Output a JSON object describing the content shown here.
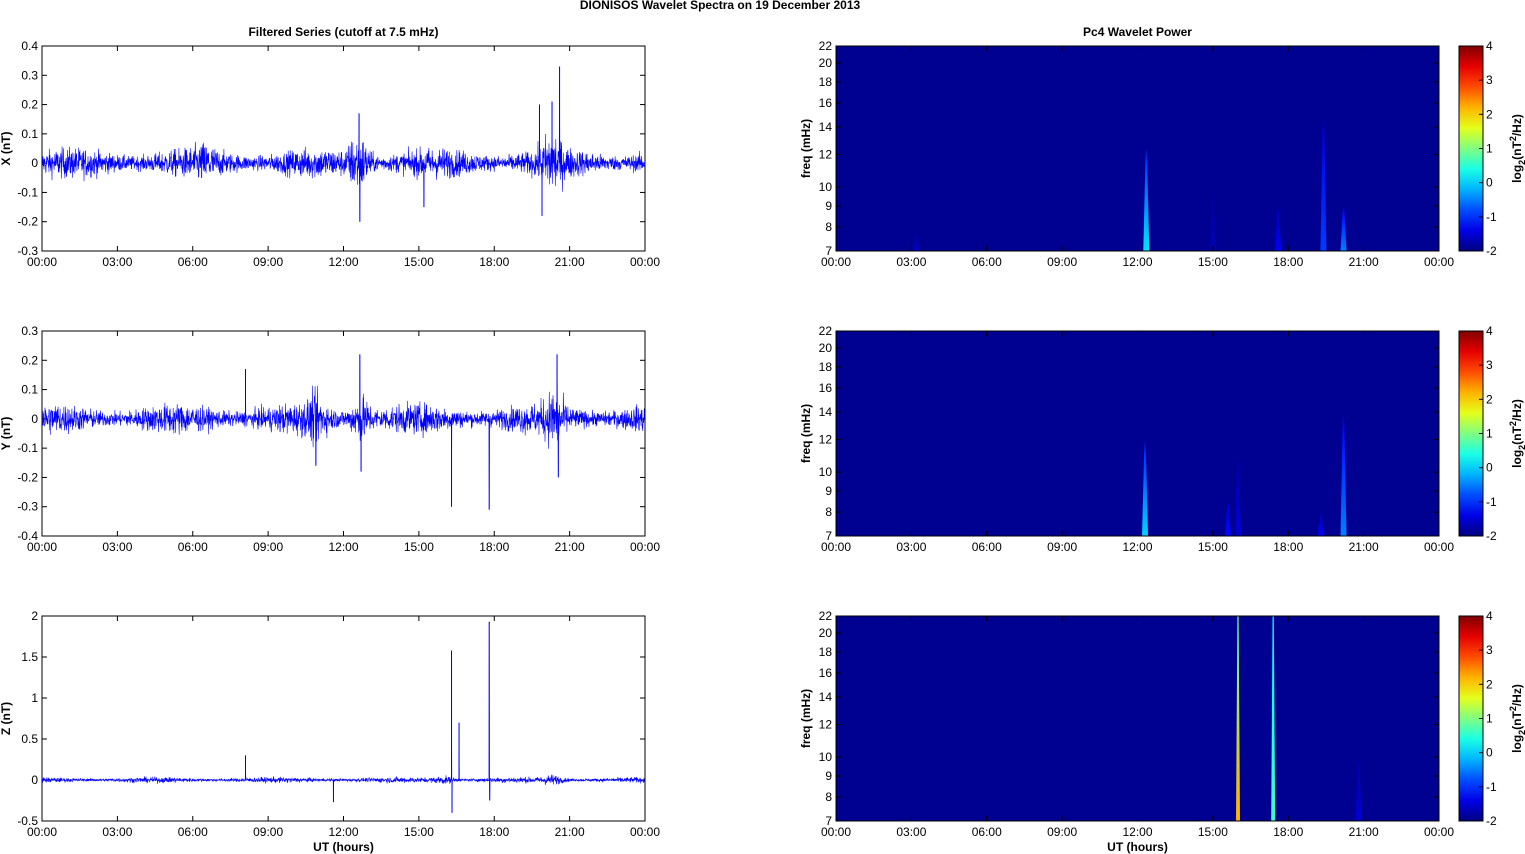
{
  "title": "DIONISOS Wavelet Spectra on 19 December  2013",
  "chart_data": [
    {
      "type": "line",
      "title": "Filtered Series (cutoff at 7.5 mHz)",
      "ylabel": "X (nT)",
      "xlabel": "",
      "xlim": [
        0,
        24
      ],
      "ylim": [
        -0.3,
        0.4
      ],
      "xticks": [
        "00:00",
        "03:00",
        "06:00",
        "09:00",
        "12:00",
        "15:00",
        "18:00",
        "21:00",
        "00:00"
      ],
      "yticks": [
        "-0.3",
        "-0.2",
        "-0.1",
        "0",
        "0.1",
        "0.2",
        "0.3",
        "0.4"
      ],
      "ytick_values": [
        -0.3,
        -0.2,
        -0.1,
        0,
        0.1,
        0.2,
        0.3,
        0.4
      ],
      "noise_amplitude": 0.045,
      "color": "#0000ff",
      "bursts": [
        {
          "t": 12.6,
          "amp": 0.07
        },
        {
          "t": 20.3,
          "amp": 0.06
        },
        {
          "t": 6.5,
          "amp": 0.02
        }
      ],
      "spikes": [
        {
          "t": 12.62,
          "v": 0.17
        },
        {
          "t": 12.65,
          "v": -0.2
        },
        {
          "t": 19.8,
          "v": 0.2
        },
        {
          "t": 19.9,
          "v": -0.18
        },
        {
          "t": 20.6,
          "v": 0.33
        },
        {
          "t": 20.3,
          "v": 0.21
        },
        {
          "t": 15.2,
          "v": -0.15
        }
      ]
    },
    {
      "type": "line",
      "title": "",
      "ylabel": "Y (nT)",
      "xlabel": "",
      "xlim": [
        0,
        24
      ],
      "ylim": [
        -0.4,
        0.3
      ],
      "xticks": [
        "00:00",
        "03:00",
        "06:00",
        "09:00",
        "12:00",
        "15:00",
        "18:00",
        "21:00",
        "00:00"
      ],
      "yticks": [
        "-0.4",
        "-0.3",
        "-0.2",
        "-0.1",
        "0",
        "0.1",
        "0.2",
        "0.3"
      ],
      "ytick_values": [
        -0.4,
        -0.3,
        -0.2,
        -0.1,
        0,
        0.1,
        0.2,
        0.3
      ],
      "noise_amplitude": 0.045,
      "color": "#0000ff",
      "bursts": [
        {
          "t": 12.7,
          "amp": 0.05
        },
        {
          "t": 20.4,
          "amp": 0.05
        },
        {
          "t": 10.9,
          "amp": 0.04
        }
      ],
      "spikes": [
        {
          "t": 16.3,
          "v": -0.3
        },
        {
          "t": 17.8,
          "v": -0.31
        },
        {
          "t": 12.65,
          "v": 0.22
        },
        {
          "t": 12.7,
          "v": -0.18
        },
        {
          "t": 20.5,
          "v": 0.22
        },
        {
          "t": 20.55,
          "v": -0.2
        },
        {
          "t": 10.9,
          "v": -0.16
        },
        {
          "t": 8.1,
          "v": 0.17
        }
      ]
    },
    {
      "type": "line",
      "title": "",
      "ylabel": "Z (nT)",
      "xlabel": "UT (hours)",
      "xlim": [
        0,
        24
      ],
      "ylim": [
        -0.5,
        2
      ],
      "xticks": [
        "00:00",
        "03:00",
        "06:00",
        "09:00",
        "12:00",
        "15:00",
        "18:00",
        "21:00",
        "00:00"
      ],
      "yticks": [
        "-0.5",
        "0",
        "0.5",
        "1",
        "1.5",
        "2"
      ],
      "ytick_values": [
        -0.5,
        0,
        0.5,
        1,
        1.5,
        2
      ],
      "noise_amplitude": 0.03,
      "color": "#0000ff",
      "bursts": [
        {
          "t": 20.3,
          "amp": 0.04
        },
        {
          "t": 16,
          "amp": 0.03
        }
      ],
      "spikes": [
        {
          "t": 16.3,
          "v": 1.58
        },
        {
          "t": 16.32,
          "v": -0.4
        },
        {
          "t": 16.6,
          "v": 0.7
        },
        {
          "t": 17.8,
          "v": 1.93
        },
        {
          "t": 17.82,
          "v": -0.25
        },
        {
          "t": 8.1,
          "v": 0.3
        },
        {
          "t": 11.6,
          "v": -0.27
        }
      ]
    },
    {
      "type": "heatmap",
      "title": "Pc4 Wavelet Power",
      "ylabel": "freq (mHz)",
      "xlabel": "",
      "xlim": [
        0,
        24
      ],
      "ylim": [
        7,
        22
      ],
      "yscale": "log",
      "xticks": [
        "00:00",
        "03:00",
        "06:00",
        "09:00",
        "12:00",
        "15:00",
        "18:00",
        "21:00",
        "00:00"
      ],
      "yticks": [
        "7",
        "8",
        "9",
        "10",
        "12",
        "14",
        "16",
        "18",
        "20",
        "22"
      ],
      "ytick_values": [
        7,
        8,
        9,
        10,
        12,
        14,
        16,
        18,
        20,
        22
      ],
      "colorbar": {
        "label": "log2(nT2/Hz)",
        "ticks": [
          "-2",
          "-1",
          "0",
          "1",
          "2",
          "3",
          "4"
        ],
        "range": [
          -2,
          4
        ]
      },
      "background_level": -1.9,
      "features": [
        {
          "t": 12.35,
          "f_top": 12.5,
          "level": 0.1
        },
        {
          "t": 19.4,
          "f_top": 15,
          "level": -0.9
        },
        {
          "t": 20.2,
          "f_top": 9,
          "level": -0.5
        },
        {
          "t": 17.6,
          "f_top": 9,
          "level": -1.3
        },
        {
          "t": 15,
          "f_top": 10,
          "level": -1.7
        },
        {
          "t": 3.2,
          "f_top": 7.7,
          "level": -1.6
        }
      ]
    },
    {
      "type": "heatmap",
      "title": "",
      "ylabel": "freq (mHz)",
      "xlabel": "",
      "xlim": [
        0,
        24
      ],
      "ylim": [
        7,
        22
      ],
      "yscale": "log",
      "xticks": [
        "00:00",
        "03:00",
        "06:00",
        "09:00",
        "12:00",
        "15:00",
        "18:00",
        "21:00",
        "00:00"
      ],
      "yticks": [
        "7",
        "8",
        "9",
        "10",
        "12",
        "14",
        "16",
        "18",
        "20",
        "22"
      ],
      "ytick_values": [
        7,
        8,
        9,
        10,
        12,
        14,
        16,
        18,
        20,
        22
      ],
      "colorbar": {
        "label": "log2(nT2/Hz)",
        "ticks": [
          "-2",
          "-1",
          "0",
          "1",
          "2",
          "3",
          "4"
        ],
        "range": [
          -2,
          4
        ]
      },
      "background_level": -1.9,
      "features": [
        {
          "t": 12.3,
          "f_top": 12,
          "level": 0
        },
        {
          "t": 20.2,
          "f_top": 14,
          "level": -0.5
        },
        {
          "t": 15.6,
          "f_top": 8.5,
          "level": -1.2
        },
        {
          "t": 16,
          "f_top": 11,
          "level": -1.5
        },
        {
          "t": 19.3,
          "f_top": 8,
          "level": -1.3
        }
      ]
    },
    {
      "type": "heatmap",
      "title": "",
      "ylabel": "freq (mHz)",
      "xlabel": "UT (hours)",
      "xlim": [
        0,
        24
      ],
      "ylim": [
        7,
        22
      ],
      "yscale": "log",
      "xticks": [
        "00:00",
        "03:00",
        "06:00",
        "09:00",
        "12:00",
        "15:00",
        "18:00",
        "21:00",
        "00:00"
      ],
      "yticks": [
        "7",
        "8",
        "9",
        "10",
        "12",
        "14",
        "16",
        "18",
        "20",
        "22"
      ],
      "ytick_values": [
        7,
        8,
        9,
        10,
        12,
        14,
        16,
        18,
        20,
        22
      ],
      "colorbar": {
        "label": "log2(nT2/Hz)",
        "ticks": [
          "-2",
          "-1",
          "0",
          "1",
          "2",
          "3",
          "4"
        ],
        "range": [
          -2,
          4
        ]
      },
      "background_level": -1.9,
      "features": [
        {
          "t": 16.0,
          "f_top": 22,
          "level": 2.2,
          "level_top": 1
        },
        {
          "t": 17.4,
          "f_top": 22,
          "level": 0.6,
          "level_top": 0.3
        },
        {
          "t": 20.8,
          "f_top": 10,
          "level": -1.5
        }
      ]
    }
  ]
}
